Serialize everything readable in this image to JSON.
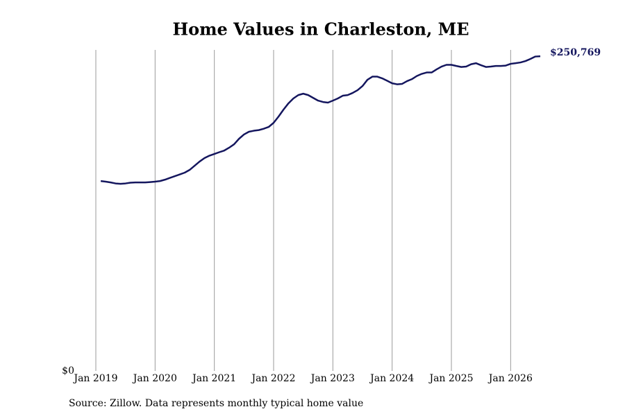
{
  "chart_data": {
    "type": "line",
    "title": "Home Values in Charleston, ME",
    "source": "Source: Zillow. Data represents monthly typical home value",
    "x": [
      "2019-02",
      "2019-03",
      "2019-04",
      "2019-05",
      "2019-06",
      "2019-07",
      "2019-08",
      "2019-09",
      "2019-10",
      "2019-11",
      "2019-12",
      "2020-01",
      "2020-02",
      "2020-03",
      "2020-04",
      "2020-05",
      "2020-06",
      "2020-07",
      "2020-08",
      "2020-09",
      "2020-10",
      "2020-11",
      "2020-12",
      "2021-01",
      "2021-02",
      "2021-03",
      "2021-04",
      "2021-05",
      "2021-06",
      "2021-07",
      "2021-08",
      "2021-09",
      "2021-10",
      "2021-11",
      "2021-12",
      "2022-01",
      "2022-02",
      "2022-03",
      "2022-04",
      "2022-05",
      "2022-06",
      "2022-07",
      "2022-08",
      "2022-09",
      "2022-10",
      "2022-11",
      "2022-12",
      "2023-01",
      "2023-02",
      "2023-03",
      "2023-04",
      "2023-05",
      "2023-06",
      "2023-07",
      "2023-08",
      "2023-09",
      "2023-10",
      "2023-11",
      "2023-12",
      "2024-01",
      "2024-02",
      "2024-03",
      "2024-04",
      "2024-05",
      "2024-06",
      "2024-07",
      "2024-08",
      "2024-09",
      "2024-10",
      "2024-11",
      "2024-12",
      "2025-01",
      "2025-02",
      "2025-03",
      "2025-04",
      "2025-05",
      "2025-06",
      "2025-07",
      "2025-08",
      "2025-09",
      "2025-10",
      "2025-11",
      "2025-12",
      "2026-01",
      "2026-02",
      "2026-03",
      "2026-04",
      "2026-05",
      "2026-06",
      "2026-07"
    ],
    "series": [
      {
        "name": "Home Value",
        "color": "#14165e",
        "values": [
          151300,
          150800,
          150200,
          149400,
          149100,
          149400,
          150000,
          150200,
          150200,
          150200,
          150500,
          150800,
          151300,
          152400,
          153800,
          155200,
          156600,
          158000,
          160200,
          163500,
          166800,
          169600,
          171500,
          172900,
          174300,
          175600,
          177900,
          180600,
          185000,
          188400,
          190600,
          191400,
          191900,
          193000,
          194400,
          197700,
          202700,
          208200,
          213200,
          217100,
          219800,
          220900,
          219800,
          217600,
          215400,
          214300,
          213800,
          215400,
          217100,
          219300,
          219800,
          221500,
          223700,
          227000,
          232000,
          234500,
          234500,
          233100,
          231200,
          229200,
          228400,
          228700,
          230900,
          232500,
          235000,
          236700,
          237800,
          237800,
          240300,
          242500,
          243900,
          243900,
          243000,
          242200,
          242500,
          244400,
          245200,
          243600,
          242200,
          242500,
          243000,
          243000,
          243300,
          244700,
          245200,
          245800,
          246900,
          248600,
          250500,
          250769
        ],
        "value_labels": [
          null,
          null,
          null,
          null,
          null,
          null,
          null,
          null,
          null,
          null,
          null,
          null,
          null,
          null,
          null,
          null,
          null,
          null,
          null,
          null,
          null,
          null,
          null,
          null,
          null,
          null,
          null,
          null,
          null,
          null,
          null,
          null,
          null,
          null,
          null,
          null,
          null,
          null,
          null,
          null,
          null,
          null,
          null,
          null,
          null,
          null,
          null,
          null,
          null,
          null,
          null,
          null,
          null,
          null,
          null,
          null,
          null,
          null,
          null,
          null,
          null,
          null,
          null,
          null,
          null,
          null,
          null,
          null,
          null,
          null,
          null,
          null,
          null,
          null,
          null,
          null,
          null,
          null,
          null,
          null,
          null,
          null,
          null,
          null,
          null,
          null,
          null,
          null,
          null,
          "$250,769"
        ]
      }
    ],
    "xlim": [
      "2019-01",
      "2026-07"
    ],
    "xticks": [
      {
        "value": "2019-01",
        "label": "Jan 2019"
      },
      {
        "value": "2020-01",
        "label": "Jan 2020"
      },
      {
        "value": "2021-01",
        "label": "Jan 2021"
      },
      {
        "value": "2022-01",
        "label": "Jan 2022"
      },
      {
        "value": "2023-01",
        "label": "Jan 2023"
      },
      {
        "value": "2024-01",
        "label": "Jan 2024"
      },
      {
        "value": "2025-01",
        "label": "Jan 2025"
      },
      {
        "value": "2026-01",
        "label": "Jan 2026"
      }
    ],
    "ylim": [
      0,
      255784
    ],
    "yticks": [
      {
        "value": 0,
        "label": "$0"
      }
    ],
    "grid": "x"
  }
}
